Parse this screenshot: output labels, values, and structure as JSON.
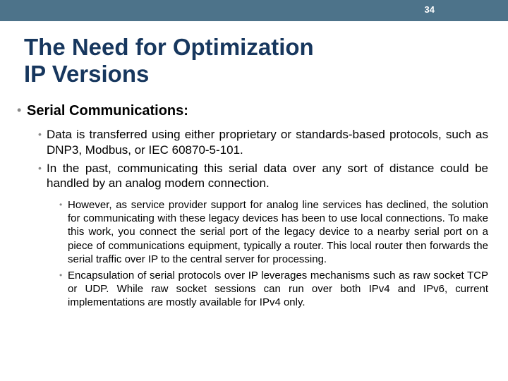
{
  "header": {
    "page_number": "34",
    "bar_color": "#4d738a"
  },
  "title": {
    "line1": "The Need for Optimization",
    "line2": "IP Versions",
    "color": "#17375e",
    "fontsize": 33
  },
  "content": {
    "lvl1_heading": "Serial Communications:",
    "lvl2_items": [
      "Data is transferred using either proprietary or standards-based protocols, such as DNP3, Modbus, or IEC 60870-5-101.",
      "In the past, communicating this serial data over any sort of distance could be handled by an analog modem connection."
    ],
    "lvl3_items": [
      "However, as service provider support for analog line services has declined, the solution for communicating with these legacy devices has been to use local connections. To make this work, you connect the serial port of the legacy device to a nearby serial port on a piece of communications equipment, typically a router. This local router then forwards the serial traffic over IP to the central server for processing.",
      "Encapsulation of serial protocols over IP leverages mechanisms such as raw socket TCP or UDP. While raw socket sessions can run over both IPv4 and IPv6, current implementations are mostly available for IPv4 only."
    ],
    "bullet_color": "#888888",
    "lvl1_fontsize": 20,
    "lvl2_fontsize": 17,
    "lvl3_fontsize": 15
  }
}
